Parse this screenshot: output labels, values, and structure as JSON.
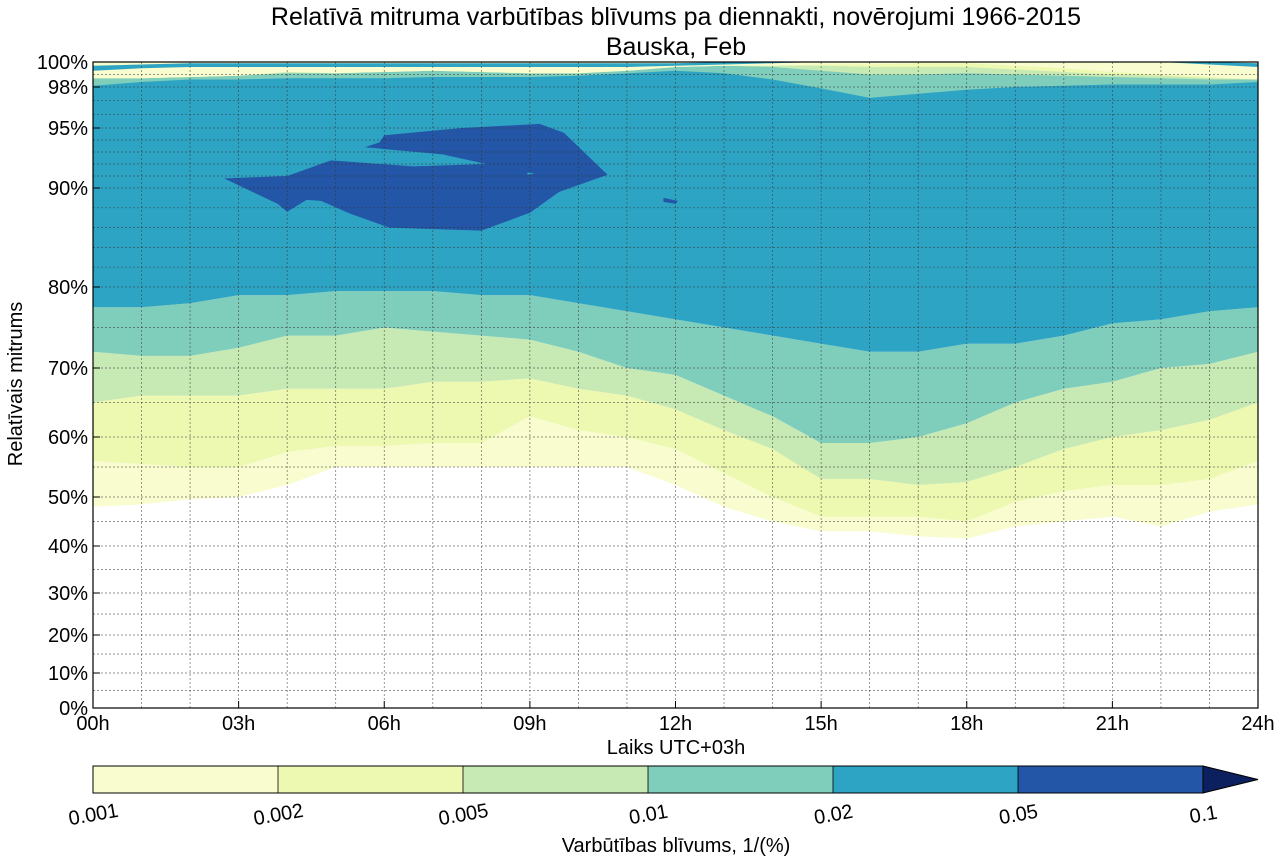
{
  "chart_data": {
    "type": "contourf",
    "title": "Relatīvā mitruma varbūtības blīvums pa diennakti, novērojumi 1966-2015",
    "subtitle": "Bauska, Feb",
    "xlabel": "Laiks UTC+03h",
    "ylabel": "Relatīvais mitrums",
    "xlim": [
      0,
      24
    ],
    "x_ticks": [
      {
        "value": 0,
        "label": "00h"
      },
      {
        "value": 3,
        "label": "03h"
      },
      {
        "value": 6,
        "label": "06h"
      },
      {
        "value": 9,
        "label": "09h"
      },
      {
        "value": 12,
        "label": "12h"
      },
      {
        "value": 15,
        "label": "15h"
      },
      {
        "value": 18,
        "label": "18h"
      },
      {
        "value": 21,
        "label": "21h"
      },
      {
        "value": 24,
        "label": "24h"
      }
    ],
    "y_ticks": [
      {
        "value": 0,
        "label": "0%"
      },
      {
        "value": 10,
        "label": "10%"
      },
      {
        "value": 20,
        "label": "20%"
      },
      {
        "value": 30,
        "label": "30%"
      },
      {
        "value": 40,
        "label": "40%"
      },
      {
        "value": 50,
        "label": "50%"
      },
      {
        "value": 60,
        "label": "60%"
      },
      {
        "value": 70,
        "label": "70%"
      },
      {
        "value": 80,
        "label": "80%"
      },
      {
        "value": 90,
        "label": "90%"
      },
      {
        "value": 95,
        "label": "95%"
      },
      {
        "value": 98,
        "label": "98%"
      },
      {
        "value": 100,
        "label": "100%"
      }
    ],
    "grid": true,
    "levels": [
      0.001,
      0.002,
      0.005,
      0.01,
      0.02,
      0.05,
      0.1
    ],
    "colorbar": {
      "label": "Varbūtības blīvums, 1/(%)",
      "tick_labels": [
        "0.001",
        "0.002",
        "0.005",
        "0.01",
        "0.02",
        "0.05",
        "0.1"
      ],
      "colors": [
        "#f8fcce",
        "#edf8b1",
        "#c7e9b4",
        "#7fcdbb",
        "#2ea4c4",
        "#2356a7",
        "#0c1f5e"
      ],
      "extend": "max"
    },
    "x": [
      0,
      1,
      2,
      3,
      4,
      5,
      6,
      7,
      8,
      9,
      10,
      11,
      12,
      13,
      14,
      15,
      16,
      17,
      18,
      19,
      20,
      21,
      22,
      23,
      24
    ],
    "band_boundaries": [
      {
        "level": 0.001,
        "y": [
          48,
          48.5,
          49.5,
          50,
          52,
          55,
          55,
          55,
          55,
          55,
          55,
          55,
          52,
          48,
          45,
          43,
          43,
          42,
          41.5,
          44,
          45,
          46,
          44,
          47,
          48.5
        ]
      },
      {
        "level": 0.002,
        "y": [
          56,
          55.5,
          55,
          55,
          57.5,
          58.5,
          58.5,
          59,
          59,
          63,
          61,
          60,
          58,
          54,
          50,
          46,
          46,
          46,
          45,
          49,
          51,
          52,
          52,
          53,
          56
        ]
      },
      {
        "level": 0.005,
        "y": [
          65,
          66,
          66,
          66,
          67,
          67,
          67,
          68,
          68,
          68.5,
          67,
          66,
          64,
          61,
          58,
          53,
          53,
          52,
          52.5,
          55,
          58,
          60,
          61,
          62.5,
          65
        ]
      },
      {
        "level": 0.01,
        "y": [
          72,
          71.5,
          71.5,
          72.5,
          74,
          74,
          75,
          74.5,
          74,
          73.5,
          72,
          70,
          69,
          66,
          63,
          59,
          59,
          60,
          62,
          65,
          67,
          68,
          70,
          70.5,
          72
        ]
      },
      {
        "level": 0.02,
        "y": [
          77.5,
          77.5,
          78,
          79,
          79,
          79.5,
          79.5,
          79.5,
          79,
          79,
          78,
          77,
          76,
          75,
          74,
          73,
          72,
          72,
          73,
          73,
          74,
          75.5,
          76,
          77,
          77.5
        ]
      },
      {
        "level": 0.02,
        "side": "top",
        "y": [
          98.1,
          98.4,
          98.6,
          98.6,
          98.7,
          98.7,
          98.7,
          98.8,
          98.8,
          98.8,
          98.9,
          99.1,
          99.3,
          99.1,
          98.6,
          97.9,
          97.2,
          97.5,
          97.8,
          98,
          98.1,
          98.2,
          98.2,
          98.2,
          98.4
        ]
      }
    ],
    "peak_region": {
      "level": 0.05,
      "x_range": [
        2.7,
        10.6
      ],
      "y_range": [
        85.6,
        95.3
      ]
    }
  }
}
